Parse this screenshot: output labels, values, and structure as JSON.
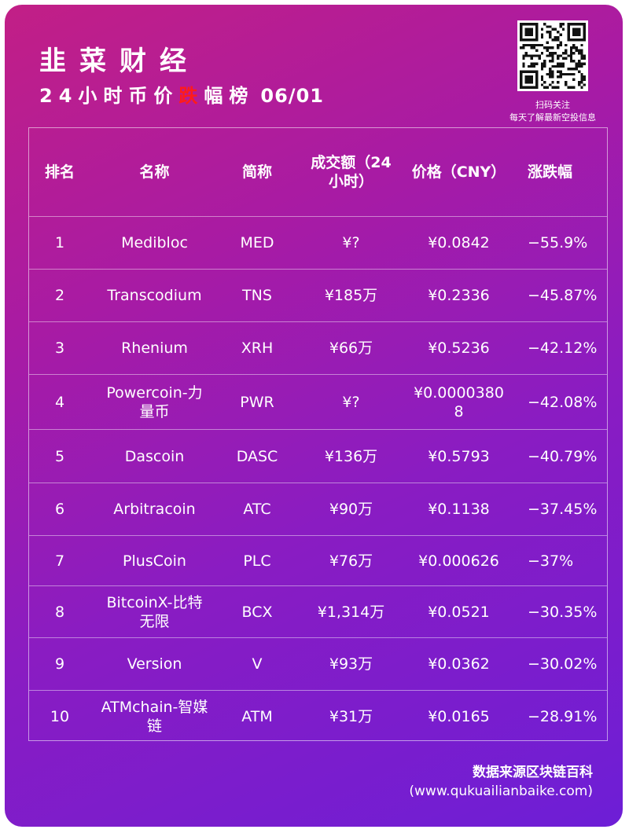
{
  "header": {
    "title": "韭菜财经",
    "subtitle_before": "24小时币价",
    "subtitle_highlight": "跌",
    "subtitle_after": "幅榜",
    "date": "06/01",
    "highlight_color": "#ff1b1b"
  },
  "qr": {
    "icon": "qr-code-icon",
    "caption_line1": "扫码关注",
    "caption_line2": "每天了解最新空投信息"
  },
  "table": {
    "columns": [
      "排名",
      "名称",
      "简称",
      "成交额（24小时）",
      "价格（CNY）",
      "涨跌幅"
    ],
    "rows": [
      {
        "rank": "1",
        "name": "Medibloc",
        "symbol": "MED",
        "volume": "¥?",
        "price": "¥0.0842",
        "change": "−55.9%"
      },
      {
        "rank": "2",
        "name": "Transcodium",
        "symbol": "TNS",
        "volume": "¥185万",
        "price": "¥0.2336",
        "change": "−45.87%"
      },
      {
        "rank": "3",
        "name": "Rhenium",
        "symbol": "XRH",
        "volume": "¥66万",
        "price": "¥0.5236",
        "change": "−42.12%"
      },
      {
        "rank": "4",
        "name": "Powercoin-力量币",
        "symbol": "PWR",
        "volume": "¥?",
        "price": "¥0.00003808",
        "change": "−42.08%"
      },
      {
        "rank": "5",
        "name": "Dascoin",
        "symbol": "DASC",
        "volume": "¥136万",
        "price": "¥0.5793",
        "change": "−40.79%"
      },
      {
        "rank": "6",
        "name": "Arbitracoin",
        "symbol": "ATC",
        "volume": "¥90万",
        "price": "¥0.1138",
        "change": "−37.45%"
      },
      {
        "rank": "7",
        "name": "PlusCoin",
        "symbol": "PLC",
        "volume": "¥76万",
        "price": "¥0.000626",
        "change": "−37%"
      },
      {
        "rank": "8",
        "name": "BitcoinX-比特无限",
        "symbol": "BCX",
        "volume": "¥1,314万",
        "price": "¥0.0521",
        "change": "−30.35%"
      },
      {
        "rank": "9",
        "name": "Version",
        "symbol": "V",
        "volume": "¥93万",
        "price": "¥0.0362",
        "change": "−30.02%"
      },
      {
        "rank": "10",
        "name": "ATMchain-智媒链",
        "symbol": "ATM",
        "volume": "¥31万",
        "price": "¥0.0165",
        "change": "−28.91%"
      }
    ]
  },
  "footer": {
    "source": "数据来源区块链百科",
    "url": "(www.qukuailianbaike.com)"
  }
}
